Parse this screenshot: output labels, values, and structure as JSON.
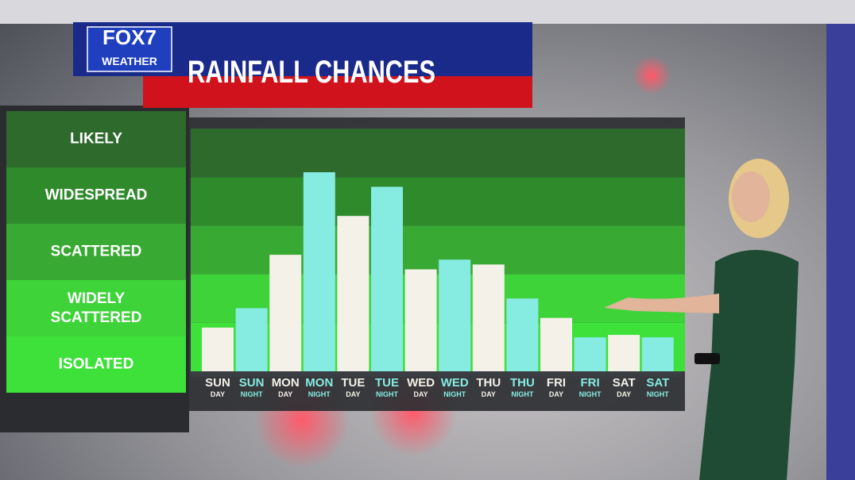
{
  "brand": {
    "logo": "FOX7",
    "sublogo": "WEATHER"
  },
  "chart_data": {
    "type": "bar",
    "title": "RAINFALL CHANCES",
    "categories": [
      [
        "SUN",
        "DAY"
      ],
      [
        "SUN",
        "NIGHT"
      ],
      [
        "MON",
        "DAY"
      ],
      [
        "MON",
        "NIGHT"
      ],
      [
        "TUE",
        "DAY"
      ],
      [
        "TUE",
        "NIGHT"
      ],
      [
        "WED",
        "DAY"
      ],
      [
        "WED",
        "NIGHT"
      ],
      [
        "THU",
        "DAY"
      ],
      [
        "THU",
        "NIGHT"
      ],
      [
        "FRI",
        "DAY"
      ],
      [
        "FRI",
        "NIGHT"
      ],
      [
        "SAT",
        "DAY"
      ],
      [
        "SAT",
        "NIGHT"
      ]
    ],
    "values": [
      0.9,
      1.3,
      2.4,
      4.1,
      3.2,
      3.8,
      2.1,
      2.3,
      2.2,
      1.5,
      1.1,
      0.7,
      0.75,
      0.7
    ],
    "colors": [
      "#f4f1e8",
      "#86ece2",
      "#f4f1e8",
      "#86ece2",
      "#f4f1e8",
      "#86ece2",
      "#f4f1e8",
      "#86ece2",
      "#f4f1e8",
      "#86ece2",
      "#f4f1e8",
      "#86ece2",
      "#f4f1e8",
      "#86ece2"
    ],
    "ylim": [
      0,
      5
    ],
    "yticks": [
      {
        "value": 0.5,
        "label": "ISOLATED"
      },
      {
        "value": 1.5,
        "label": "WIDELY SCATTERED"
      },
      {
        "value": 2.5,
        "label": "SCATTERED"
      },
      {
        "value": 3.5,
        "label": "WIDESPREAD"
      },
      {
        "value": 4.5,
        "label": "LIKELY"
      }
    ],
    "band_colors": [
      "#3ee03a",
      "#3fd33a",
      "#38a932",
      "#2e8a2b",
      "#2d6a2c"
    ]
  }
}
